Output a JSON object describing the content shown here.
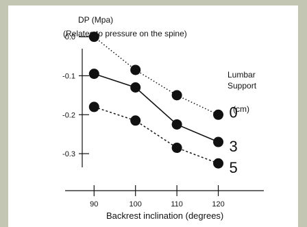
{
  "chart_data": {
    "type": "line",
    "ylabel": "DP (Mpa)",
    "ylabel_note": "(Relates to pressure on the spine)",
    "xlabel": "Backrest inclination (degrees)",
    "x": [
      90,
      100,
      110,
      120
    ],
    "x_ticks": [
      "90",
      "100",
      "110",
      "120"
    ],
    "y_ticks": [
      {
        "value": 0.0,
        "label": "0.0"
      },
      {
        "value": -0.1,
        "label": "-0.1"
      },
      {
        "value": -0.2,
        "label": "-0.2"
      },
      {
        "value": -0.3,
        "label": "-0.3"
      }
    ],
    "xlim": [
      83,
      131
    ],
    "ylim": [
      -0.395,
      0.01
    ],
    "legend_title": "Lumbar Support",
    "legend_unit": "(cm)",
    "series": [
      {
        "name": "0",
        "style": "dotted",
        "values": [
          0.0,
          -0.085,
          -0.15,
          -0.2
        ]
      },
      {
        "name": "3",
        "style": "solid",
        "values": [
          -0.095,
          -0.13,
          -0.225,
          -0.27
        ]
      },
      {
        "name": "5",
        "style": "dashed",
        "values": [
          -0.18,
          -0.215,
          -0.285,
          -0.325
        ]
      }
    ],
    "grid": false,
    "colors": {
      "marker": "#111111",
      "line": "#111111",
      "background": "#c3c6b2",
      "plot": "#ffffff"
    }
  }
}
